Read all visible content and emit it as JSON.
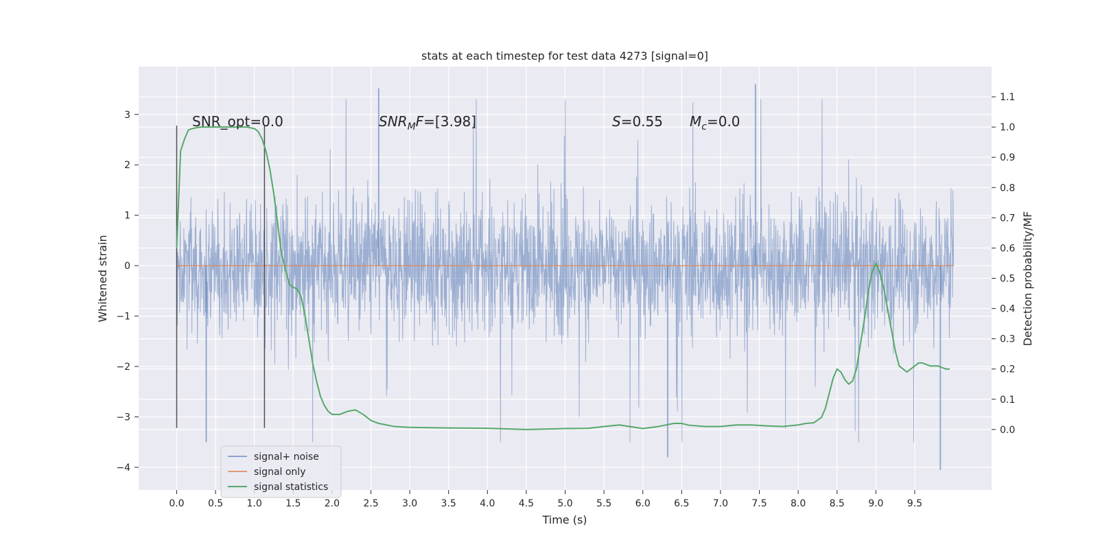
{
  "chart_data": {
    "type": "line",
    "title": "stats at each timestep for test data 4273 [signal=0]",
    "xlabel": "Time (s)",
    "ylabel": "Whitened strain",
    "y2label": "Detection probability/MF",
    "xlim": [
      -0.49,
      10.49
    ],
    "ylim": [
      -4.45,
      3.95
    ],
    "y2lim": [
      -0.2,
      1.2
    ],
    "x_ticks": [
      "0.0",
      "0.5",
      "1.0",
      "1.5",
      "2.0",
      "2.5",
      "3.0",
      "3.5",
      "4.0",
      "4.5",
      "5.0",
      "5.5",
      "6.0",
      "6.5",
      "7.0",
      "7.5",
      "8.0",
      "8.5",
      "9.0",
      "9.5"
    ],
    "y_ticks": [
      "−4",
      "−3",
      "−2",
      "−1",
      "0",
      "1",
      "2",
      "3"
    ],
    "y2_ticks": [
      "0.0",
      "0.1",
      "0.2",
      "0.3",
      "0.4",
      "0.5",
      "0.6",
      "0.7",
      "0.8",
      "0.9",
      "1.0",
      "1.1"
    ],
    "grid": true,
    "legend_position": "lower-left",
    "colors": {
      "background": "#eaeaf2",
      "grid": "#ffffff",
      "noise": "#4c72b0",
      "signal": "#dd8452",
      "statistics": "#55a868",
      "markers": "#333333"
    },
    "annotations": [
      {
        "type": "plain",
        "text": "SNR_opt=0.0"
      },
      {
        "type": "sub",
        "base": "SNR",
        "sub": "M",
        "rest": "F=[3.98]"
      },
      {
        "type": "italic",
        "base": "S",
        "rest": "=0.55"
      },
      {
        "type": "sub",
        "base": "M",
        "sub": "c",
        "rest": "=0.0"
      }
    ],
    "vertical_markers": [
      0.0,
      1.13
    ],
    "series": [
      {
        "name": "signal+ noise",
        "kind": "noise_strain",
        "x_range": [
          0.0,
          10.0
        ],
        "typical_range": [
          -1.5,
          1.5
        ],
        "extremes": [
          3.6,
          -4.05
        ]
      },
      {
        "name": "signal only",
        "kind": "line",
        "x": [
          0.0,
          10.0
        ],
        "y": [
          0.0,
          0.0
        ]
      },
      {
        "name": "signal statistics",
        "kind": "line",
        "axis": "right",
        "x": [
          0.0,
          0.05,
          0.1,
          0.15,
          0.2,
          0.3,
          0.5,
          0.7,
          0.9,
          1.0,
          1.05,
          1.1,
          1.15,
          1.2,
          1.25,
          1.3,
          1.35,
          1.4,
          1.45,
          1.5,
          1.55,
          1.6,
          1.65,
          1.7,
          1.75,
          1.8,
          1.85,
          1.9,
          1.95,
          2.0,
          2.1,
          2.2,
          2.3,
          2.4,
          2.5,
          2.6,
          2.8,
          3.0,
          3.5,
          4.0,
          4.5,
          5.0,
          5.3,
          5.5,
          5.7,
          6.0,
          6.2,
          6.4,
          6.5,
          6.6,
          6.8,
          7.0,
          7.2,
          7.4,
          7.6,
          7.8,
          8.0,
          8.1,
          8.2,
          8.3,
          8.35,
          8.4,
          8.45,
          8.5,
          8.55,
          8.6,
          8.65,
          8.7,
          8.75,
          8.8,
          8.85,
          8.9,
          8.95,
          9.0,
          9.05,
          9.1,
          9.15,
          9.2,
          9.25,
          9.3,
          9.35,
          9.4,
          9.45,
          9.5,
          9.55,
          9.6,
          9.7,
          9.8,
          9.9,
          9.95
        ],
        "y": [
          0.6,
          0.92,
          0.96,
          0.99,
          0.995,
          1.0,
          1.0,
          1.0,
          1.0,
          0.995,
          0.985,
          0.96,
          0.92,
          0.86,
          0.78,
          0.68,
          0.58,
          0.53,
          0.48,
          0.47,
          0.465,
          0.44,
          0.38,
          0.3,
          0.22,
          0.16,
          0.11,
          0.08,
          0.06,
          0.05,
          0.05,
          0.06,
          0.065,
          0.05,
          0.03,
          0.02,
          0.01,
          0.007,
          0.005,
          0.004,
          0.0,
          0.003,
          0.004,
          0.01,
          0.015,
          0.003,
          0.01,
          0.02,
          0.02,
          0.014,
          0.01,
          0.01,
          0.015,
          0.015,
          0.012,
          0.01,
          0.015,
          0.02,
          0.022,
          0.04,
          0.07,
          0.12,
          0.17,
          0.2,
          0.19,
          0.165,
          0.15,
          0.16,
          0.2,
          0.28,
          0.36,
          0.45,
          0.52,
          0.55,
          0.52,
          0.47,
          0.4,
          0.33,
          0.26,
          0.21,
          0.2,
          0.19,
          0.2,
          0.21,
          0.22,
          0.22,
          0.21,
          0.21,
          0.2,
          0.2
        ]
      }
    ]
  }
}
